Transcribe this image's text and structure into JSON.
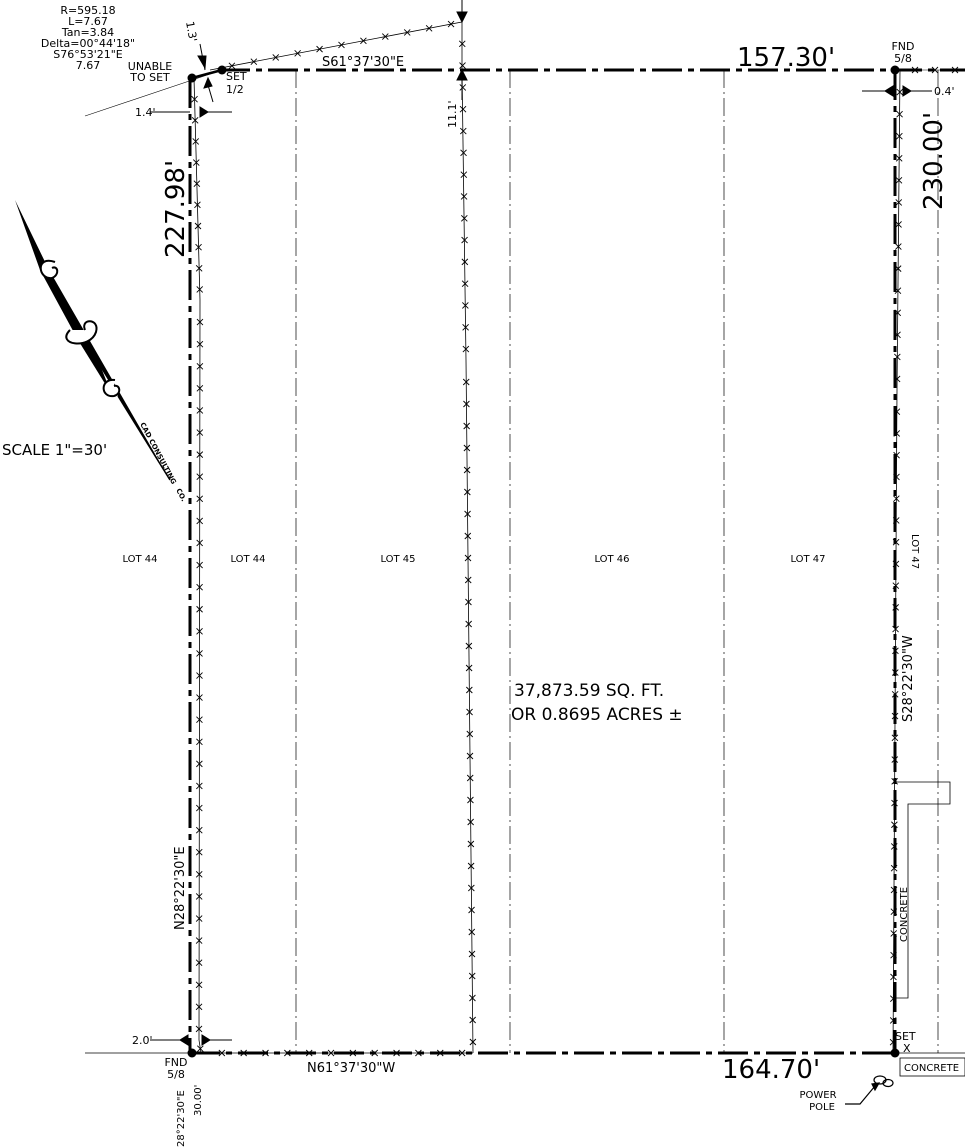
{
  "curve": {
    "r": "R=595.18",
    "l": "L=7.67",
    "tan": "Tan=3.84",
    "delta": "Delta=00°44'18\"",
    "chord_bearing": "S76°53'21\"E",
    "chord": "7.67"
  },
  "corners": {
    "unable_to_set": [
      "UNABLE",
      "TO SET"
    ],
    "set_half": [
      "SET",
      "1/2"
    ],
    "fnd_top": [
      "FND",
      "5/8"
    ],
    "fnd_bottom": [
      "FND",
      "5/8"
    ],
    "set_x": [
      "SET",
      "X"
    ]
  },
  "offsets": {
    "top_left": "1.3'",
    "left_top": "1.4'",
    "top_mid": "11.1'",
    "right_top": "0.4'",
    "left_bottom": "2.0'"
  },
  "boundary": {
    "north_bearing": "S61°37'30\"E",
    "north_distance": "157.30'",
    "east_distance": "230.00'",
    "east_bearing": "S28°22'30\"W",
    "south_bearing": "N61°37'30\"W",
    "south_distance": "164.70'",
    "west_distance": "227.98'",
    "west_bearing": "N28°22'30\"E"
  },
  "lots": {
    "lot44_outer": "LOT 44",
    "lot44": "LOT 44",
    "lot45": "LOT 45",
    "lot46": "LOT 46",
    "lot47": "LOT 47",
    "lot47_vertical": "LOT 47"
  },
  "area": {
    "sqft": "37,873.59 SQ. FT.",
    "acres": "OR 0.8695 ACRES ±"
  },
  "scale": "SCALE 1\"=30'",
  "north_arrow_text": [
    "CAD CONSULTING",
    "CO."
  ],
  "features": {
    "concrete_vertical": "CONCRETE",
    "concrete_box": "CONCRETE",
    "power_pole": [
      "POWER",
      "POLE"
    ],
    "bottom_bearing": "28°22'30\"E",
    "bottom_distance": "30.00'"
  }
}
